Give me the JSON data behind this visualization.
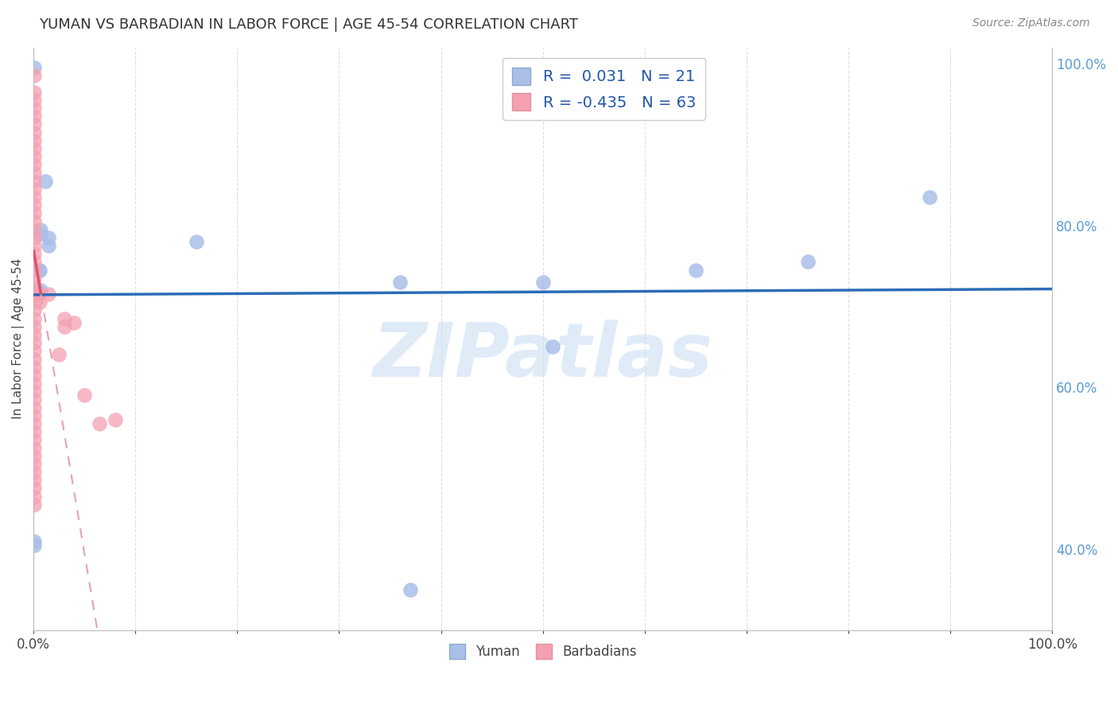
{
  "title": "YUMAN VS BARBADIAN IN LABOR FORCE | AGE 45-54 CORRELATION CHART",
  "source": "Source: ZipAtlas.com",
  "ylabel": "In Labor Force | Age 45-54",
  "blue_color": "#AABFE8",
  "pink_color": "#F4A0B0",
  "trend_blue_color": "#2B6CB8",
  "trend_pink_solid_color": "#E05070",
  "trend_pink_dash_color": "#E8A0B0",
  "legend_text_color": "#2255AA",
  "grid_color": "#DDDDDD",
  "background_color": "#FFFFFF",
  "watermark": "ZIPatlas",
  "R_blue": 0.031,
  "N_blue": 21,
  "R_pink": -0.435,
  "N_pink": 63,
  "blue_points_x": [
    0.001,
    0.001,
    0.001,
    0.003,
    0.003,
    0.005,
    0.006,
    0.007,
    0.007,
    0.007,
    0.012,
    0.015,
    0.015,
    0.16,
    0.36,
    0.37,
    0.5,
    0.51,
    0.65,
    0.76,
    0.88
  ],
  "blue_points_y": [
    0.995,
    0.41,
    0.405,
    0.72,
    0.715,
    0.745,
    0.745,
    0.795,
    0.79,
    0.72,
    0.855,
    0.785,
    0.775,
    0.78,
    0.73,
    0.35,
    0.73,
    0.65,
    0.745,
    0.755,
    0.835
  ],
  "pink_points_x": [
    0.001,
    0.001,
    0.001,
    0.001,
    0.001,
    0.001,
    0.001,
    0.001,
    0.001,
    0.001,
    0.001,
    0.001,
    0.001,
    0.001,
    0.001,
    0.001,
    0.001,
    0.001,
    0.001,
    0.001,
    0.001,
    0.001,
    0.001,
    0.001,
    0.001,
    0.001,
    0.001,
    0.001,
    0.001,
    0.001,
    0.001,
    0.001,
    0.001,
    0.001,
    0.001,
    0.001,
    0.001,
    0.001,
    0.001,
    0.001,
    0.001,
    0.001,
    0.001,
    0.001,
    0.001,
    0.001,
    0.001,
    0.001,
    0.001,
    0.001,
    0.001,
    0.001,
    0.001,
    0.006,
    0.006,
    0.015,
    0.025,
    0.03,
    0.03,
    0.04,
    0.05,
    0.065,
    0.08
  ],
  "pink_points_y": [
    0.985,
    0.965,
    0.955,
    0.945,
    0.935,
    0.925,
    0.915,
    0.905,
    0.895,
    0.885,
    0.875,
    0.865,
    0.855,
    0.845,
    0.835,
    0.825,
    0.815,
    0.805,
    0.795,
    0.785,
    0.775,
    0.765,
    0.755,
    0.745,
    0.735,
    0.725,
    0.715,
    0.705,
    0.695,
    0.685,
    0.675,
    0.665,
    0.655,
    0.645,
    0.635,
    0.625,
    0.615,
    0.605,
    0.595,
    0.585,
    0.575,
    0.565,
    0.555,
    0.545,
    0.535,
    0.525,
    0.515,
    0.505,
    0.495,
    0.485,
    0.475,
    0.465,
    0.455,
    0.715,
    0.705,
    0.715,
    0.64,
    0.685,
    0.675,
    0.68,
    0.59,
    0.555,
    0.56
  ],
  "ytick_right_positions": [
    0.4,
    0.6,
    0.8,
    1.0
  ],
  "ytick_right_labels": [
    "40.0%",
    "60.0%",
    "80.0%",
    "100.0%"
  ],
  "xtick_positions": [
    0.0,
    0.1,
    0.2,
    0.3,
    0.4,
    0.5,
    0.6,
    0.7,
    0.8,
    0.9,
    1.0
  ],
  "xtick_labels": [
    "0.0%",
    "",
    "",
    "",
    "",
    "",
    "",
    "",
    "",
    "",
    "100.0%"
  ],
  "xlim": [
    0.0,
    1.0
  ],
  "ylim": [
    0.3,
    1.02
  ]
}
